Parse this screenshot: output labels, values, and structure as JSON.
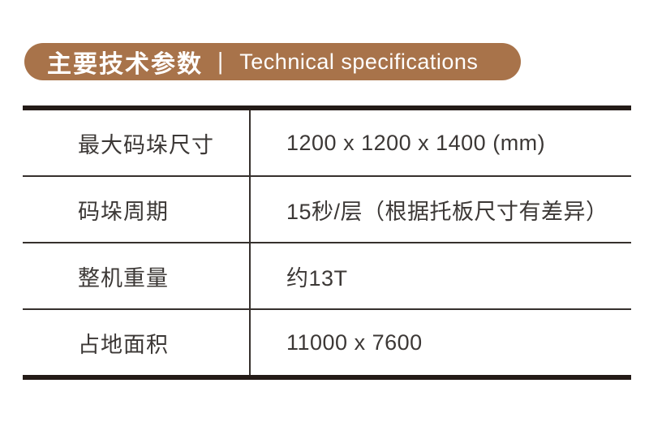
{
  "header": {
    "title_zh": "主要技术参数",
    "separator": "|",
    "title_en": "Technical specifications"
  },
  "table": {
    "rows": [
      {
        "label": "最大码垛尺寸",
        "value": "1200 x 1200 x 1400 (mm)"
      },
      {
        "label": "码垛周期",
        "value": "15秒/层（根据托板尺寸有差异）"
      },
      {
        "label": "整机重量",
        "value": "约13T"
      },
      {
        "label": "占地面积",
        "value": "11000 x 7600"
      }
    ]
  },
  "colors": {
    "accent": "#a8734a",
    "header-text": "#ffffff",
    "border-strong": "#241b17",
    "line": "#36302d",
    "text": "#3c3836"
  }
}
